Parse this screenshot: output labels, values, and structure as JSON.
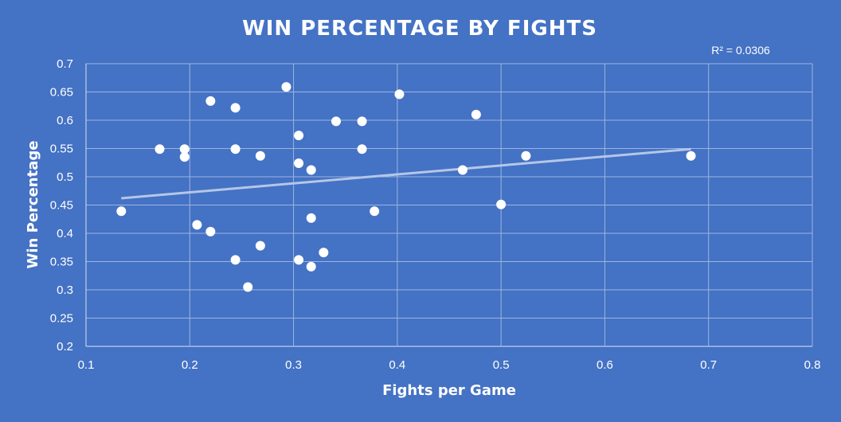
{
  "chart_data": {
    "type": "scatter",
    "title": "WIN PERCENTAGE BY FIGHTS",
    "xlabel": "Fights per Game",
    "ylabel": "Win Percentage",
    "xlim": [
      0.1,
      0.8
    ],
    "ylim": [
      0.2,
      0.7
    ],
    "x_ticks": [
      "0.1",
      "0.2",
      "0.3",
      "0.4",
      "0.5",
      "0.6",
      "0.7",
      "0.8"
    ],
    "y_ticks": [
      "0.2",
      "0.25",
      "0.3",
      "0.35",
      "0.4",
      "0.45",
      "0.5",
      "0.55",
      "0.6",
      "0.65",
      "0.7"
    ],
    "grid": true,
    "trendline": {
      "type": "linear",
      "x_start": 0.134,
      "x_end": 0.683,
      "y_start": 0.462,
      "y_end": 0.549
    },
    "r2_label": "R² = 0.0306",
    "points": [
      {
        "x": 0.134,
        "y": 0.439
      },
      {
        "x": 0.171,
        "y": 0.549
      },
      {
        "x": 0.195,
        "y": 0.549
      },
      {
        "x": 0.195,
        "y": 0.535
      },
      {
        "x": 0.207,
        "y": 0.415
      },
      {
        "x": 0.22,
        "y": 0.634
      },
      {
        "x": 0.22,
        "y": 0.403
      },
      {
        "x": 0.244,
        "y": 0.622
      },
      {
        "x": 0.244,
        "y": 0.549
      },
      {
        "x": 0.244,
        "y": 0.353
      },
      {
        "x": 0.256,
        "y": 0.305
      },
      {
        "x": 0.268,
        "y": 0.537
      },
      {
        "x": 0.268,
        "y": 0.378
      },
      {
        "x": 0.293,
        "y": 0.659
      },
      {
        "x": 0.305,
        "y": 0.573
      },
      {
        "x": 0.305,
        "y": 0.524
      },
      {
        "x": 0.305,
        "y": 0.353
      },
      {
        "x": 0.317,
        "y": 0.512
      },
      {
        "x": 0.317,
        "y": 0.427
      },
      {
        "x": 0.317,
        "y": 0.341
      },
      {
        "x": 0.329,
        "y": 0.366
      },
      {
        "x": 0.341,
        "y": 0.598
      },
      {
        "x": 0.366,
        "y": 0.598
      },
      {
        "x": 0.366,
        "y": 0.549
      },
      {
        "x": 0.378,
        "y": 0.439
      },
      {
        "x": 0.402,
        "y": 0.646
      },
      {
        "x": 0.463,
        "y": 0.512
      },
      {
        "x": 0.476,
        "y": 0.61
      },
      {
        "x": 0.5,
        "y": 0.451
      },
      {
        "x": 0.524,
        "y": 0.537
      },
      {
        "x": 0.683,
        "y": 0.537
      }
    ]
  },
  "colors": {
    "background": "#4472C4",
    "gridline": "#9DB4E0",
    "point": "#FFFFFF",
    "trendline": "#B4C7E7"
  }
}
